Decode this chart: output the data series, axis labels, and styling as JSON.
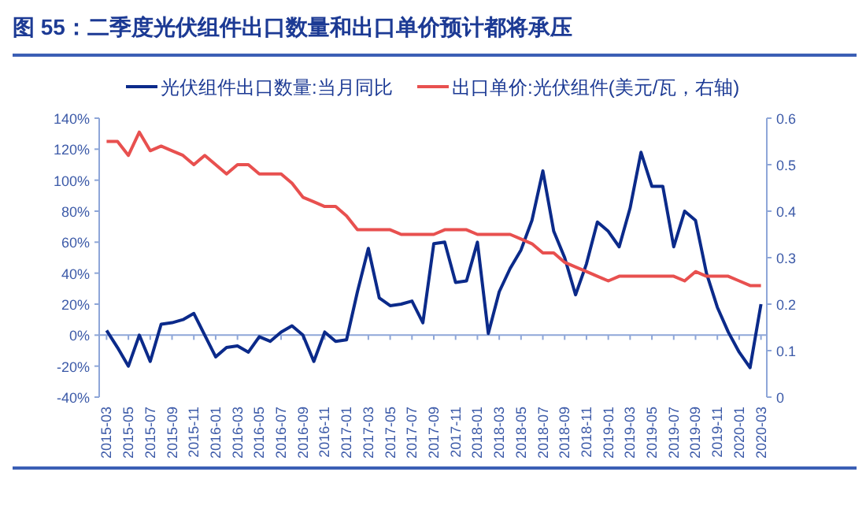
{
  "chart_data": {
    "type": "line",
    "title": "图 55：二季度光伏组件出口数量和出口单价预计都将承压",
    "categories": [
      "2015-03",
      null,
      "2015-05",
      null,
      "2015-07",
      null,
      "2015-09",
      null,
      "2015-11",
      null,
      "2016-01",
      null,
      "2016-03",
      null,
      "2016-05",
      null,
      "2016-07",
      null,
      "2016-09",
      null,
      "2016-11",
      null,
      "2017-01",
      null,
      "2017-03",
      null,
      "2017-05",
      null,
      "2017-07",
      null,
      "2017-09",
      null,
      "2017-11",
      null,
      "2018-01",
      null,
      "2018-03",
      null,
      "2018-05",
      null,
      "2018-07",
      null,
      "2018-09",
      null,
      "2018-11",
      null,
      "2019-01",
      null,
      "2019-03",
      null,
      "2019-05",
      null,
      "2019-07",
      null,
      "2019-09",
      null,
      "2019-11",
      null,
      "2020-01",
      null,
      "2020-03"
    ],
    "series": [
      {
        "name": "光伏组件出口数量:当月同比",
        "color": "#0b2a8a",
        "values": [
          3,
          -8,
          -20,
          0,
          -17,
          7,
          8,
          10,
          14,
          0,
          -14,
          -8,
          -7,
          -11,
          -1,
          -4,
          2,
          6,
          0,
          -17,
          2,
          -4,
          -3,
          28,
          56,
          24,
          19,
          20,
          22,
          8,
          59,
          60,
          34,
          35,
          60,
          1,
          28,
          43,
          55,
          74,
          106,
          67,
          50,
          26,
          46,
          73,
          67,
          57,
          82,
          118,
          96,
          96,
          57,
          80,
          74,
          40,
          18,
          2,
          -11,
          -21,
          20
        ]
      },
      {
        "name": "出口单价:光伏组件(美元/瓦，右轴)",
        "color": "#e8504f",
        "axis": "y2",
        "values": [
          0.55,
          0.55,
          0.52,
          0.57,
          0.53,
          0.54,
          0.53,
          0.52,
          0.5,
          0.52,
          0.5,
          0.48,
          0.5,
          0.5,
          0.48,
          0.48,
          0.48,
          0.46,
          0.43,
          0.42,
          0.41,
          0.41,
          0.39,
          0.36,
          0.36,
          0.36,
          0.36,
          0.35,
          0.35,
          0.35,
          0.35,
          0.36,
          0.36,
          0.36,
          0.35,
          0.35,
          0.35,
          0.35,
          0.34,
          0.33,
          0.31,
          0.31,
          0.29,
          0.28,
          0.27,
          0.26,
          0.25,
          0.26,
          0.26,
          0.26,
          0.26,
          0.26,
          0.26,
          0.25,
          0.27,
          0.26,
          0.26,
          0.26,
          0.25,
          0.24,
          0.24
        ]
      }
    ],
    "ylim": [
      -40,
      140
    ],
    "yticks": [
      {
        "value": -40,
        "label": "-40%"
      },
      {
        "value": -20,
        "label": "-20%"
      },
      {
        "value": 0,
        "label": "0%"
      },
      {
        "value": 20,
        "label": "20%"
      },
      {
        "value": 40,
        "label": "40%"
      },
      {
        "value": 60,
        "label": "60%"
      },
      {
        "value": 80,
        "label": "80%"
      },
      {
        "value": 100,
        "label": "100%"
      },
      {
        "value": 120,
        "label": "120%"
      },
      {
        "value": 140,
        "label": "140%"
      }
    ],
    "y2lim": [
      0,
      0.6
    ],
    "y2ticks": [
      0,
      0.1,
      0.2,
      0.3,
      0.4,
      0.5,
      0.6
    ],
    "ref_lines": [
      {
        "axis": "y",
        "value": 0,
        "color": "#8ea6d8"
      }
    ],
    "legend": "top"
  }
}
